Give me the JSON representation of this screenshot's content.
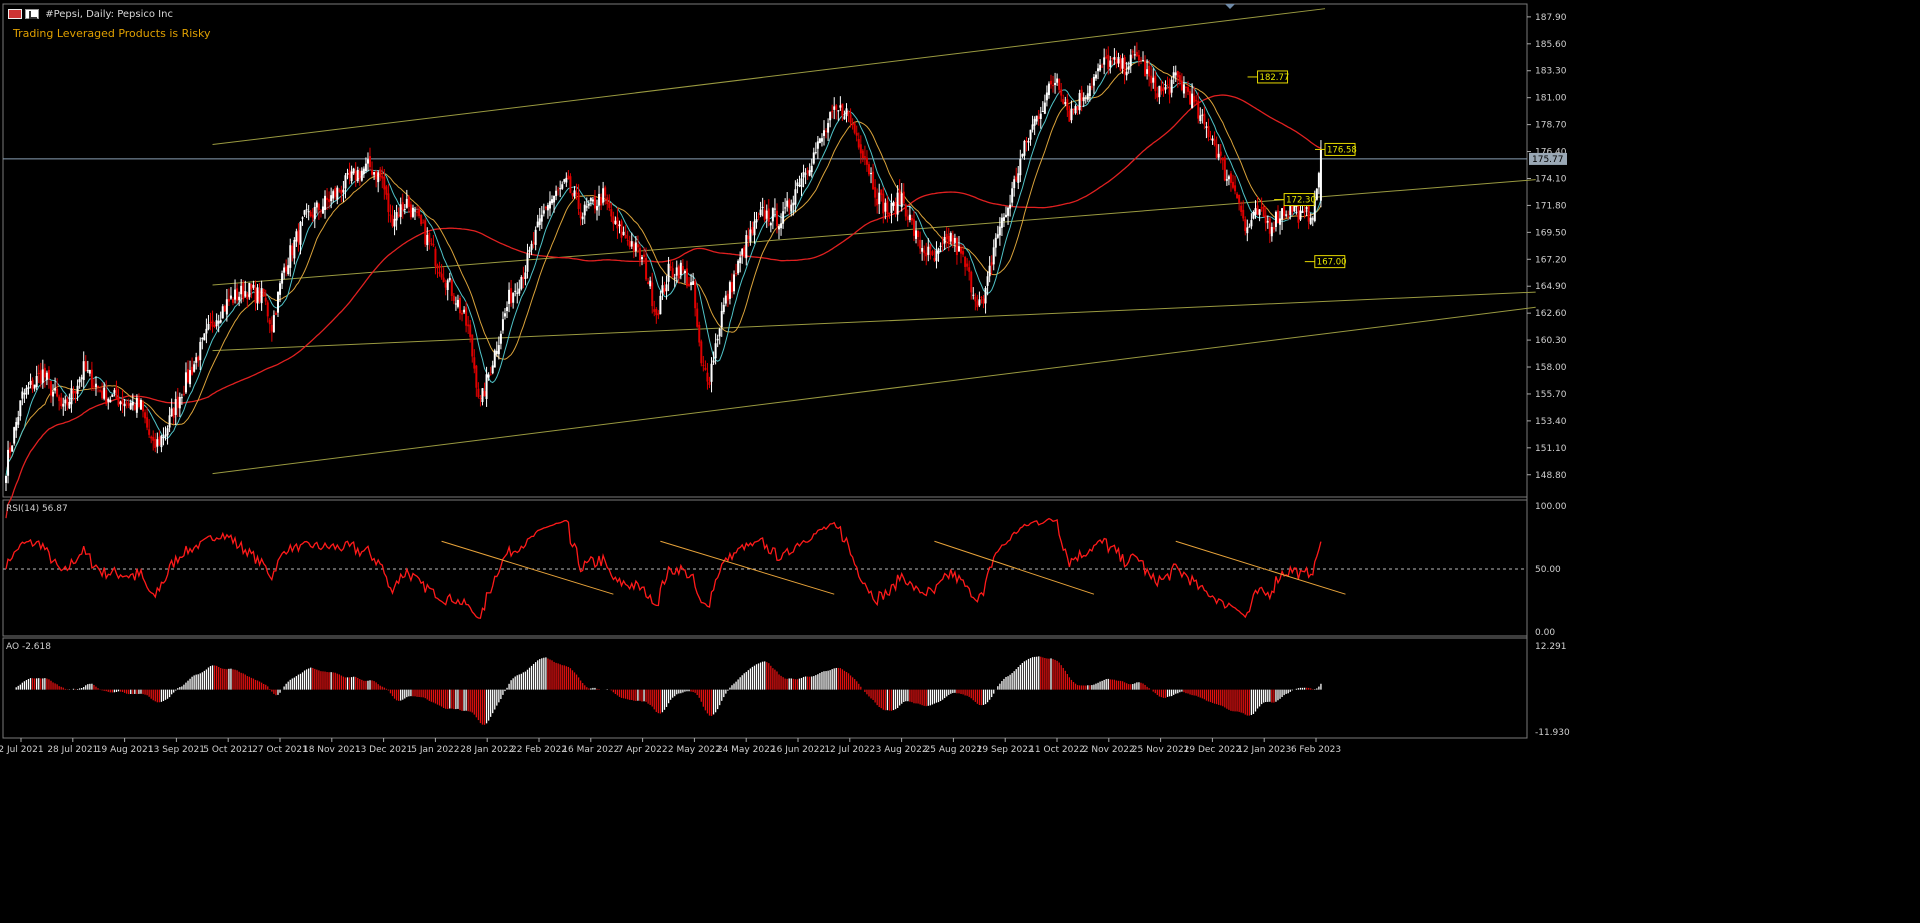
{
  "header": {
    "symbol_title": "#Pepsi, Daily:  Pepsico Inc",
    "warning": "Trading Leveraged Products is Risky"
  },
  "colors": {
    "background": "#000000",
    "bull": "#ffffff",
    "bear": "#e00000",
    "sma_fast": "#4fc3c8",
    "sma_mid": "#d9a23a",
    "sma_slow": "#e02020",
    "channel": "#9a9a40",
    "rsi_line": "#ff1a1a",
    "trend": "#e8a33a",
    "ao_up": "#ffffff",
    "ao_down": "#e01010",
    "current_price_line": "#8aa0b5"
  },
  "chart_data": [
    {
      "type": "candlestick",
      "title": "#Pepsi, Daily:  Pepsico Inc",
      "y_ticks": [
        "187.90",
        "185.60",
        "183.30",
        "181.00",
        "178.70",
        "176.40",
        "174.10",
        "171.80",
        "169.50",
        "167.20",
        "164.90",
        "162.60",
        "160.30",
        "158.00",
        "155.70",
        "153.40",
        "151.10",
        "148.80"
      ],
      "ylim": [
        146.9,
        189.0
      ],
      "current_price": "175.77",
      "callouts": [
        {
          "label": "182.77",
          "value": 182.77
        },
        {
          "label": "176.58",
          "value": 176.58
        },
        {
          "label": "172.30",
          "value": 172.3
        },
        {
          "label": "167.00",
          "value": 167.0
        }
      ],
      "x_labels": [
        "2 Jul 2021",
        "28 Jul 2021",
        "19 Aug 2021",
        "13 Sep 2021",
        "5 Oct 2021",
        "27 Oct 2021",
        "18 Nov 2021",
        "13 Dec 2021",
        "5 Jan 2022",
        "28 Jan 2022",
        "22 Feb 2022",
        "16 Mar 2022",
        "7 Apr 2022",
        "2 May 2022",
        "24 May 2022",
        "16 Jun 2022",
        "12 Jul 2022",
        "3 Aug 2022",
        "25 Aug 2022",
        "19 Sep 2022",
        "11 Oct 2022",
        "2 Nov 2022",
        "25 Nov 2022",
        "19 Dec 2022",
        "12 Jan 2023",
        "6 Feb 2023"
      ],
      "closes_anchors": [
        [
          0,
          149.5
        ],
        [
          8,
          155.5
        ],
        [
          18,
          157.5
        ],
        [
          28,
          154.2
        ],
        [
          38,
          157.8
        ],
        [
          48,
          155.6
        ],
        [
          56,
          155.2
        ],
        [
          66,
          154.6
        ],
        [
          72,
          151.0
        ],
        [
          78,
          152.5
        ],
        [
          84,
          155.2
        ],
        [
          92,
          158.3
        ],
        [
          102,
          162.2
        ],
        [
          110,
          163.8
        ],
        [
          118,
          164.6
        ],
        [
          126,
          163.9
        ],
        [
          130,
          161.5
        ],
        [
          136,
          166.5
        ],
        [
          146,
          170.6
        ],
        [
          156,
          172.0
        ],
        [
          166,
          173.6
        ],
        [
          172,
          174.6
        ],
        [
          178,
          175.1
        ],
        [
          184,
          174.0
        ],
        [
          188,
          170.6
        ],
        [
          196,
          172.1
        ],
        [
          204,
          169.6
        ],
        [
          214,
          165.9
        ],
        [
          220,
          163.9
        ],
        [
          226,
          161.2
        ],
        [
          232,
          154.8
        ],
        [
          238,
          158.6
        ],
        [
          246,
          163.8
        ],
        [
          254,
          166.5
        ],
        [
          264,
          171.8
        ],
        [
          274,
          173.6
        ],
        [
          282,
          171.1
        ],
        [
          292,
          172.6
        ],
        [
          298,
          169.9
        ],
        [
          306,
          168.6
        ],
        [
          312,
          166.8
        ],
        [
          318,
          162.6
        ],
        [
          324,
          166.1
        ],
        [
          330,
          166.4
        ],
        [
          336,
          164.6
        ],
        [
          340,
          158.0
        ],
        [
          344,
          157.2
        ],
        [
          350,
          162.6
        ],
        [
          356,
          165.6
        ],
        [
          362,
          168.6
        ],
        [
          370,
          171.1
        ],
        [
          380,
          170.6
        ],
        [
          388,
          174.1
        ],
        [
          396,
          176.4
        ],
        [
          404,
          179.4
        ],
        [
          410,
          180.1
        ],
        [
          414,
          178.6
        ],
        [
          420,
          176.1
        ],
        [
          426,
          172.6
        ],
        [
          432,
          171.1
        ],
        [
          438,
          172.6
        ],
        [
          446,
          168.6
        ],
        [
          454,
          167.1
        ],
        [
          462,
          169.1
        ],
        [
          468,
          167.1
        ],
        [
          474,
          164.1
        ],
        [
          478,
          163.2
        ],
        [
          484,
          169.1
        ],
        [
          490,
          171.6
        ],
        [
          496,
          175.6
        ],
        [
          502,
          178.6
        ],
        [
          510,
          181.6
        ],
        [
          514,
          182.8
        ],
        [
          520,
          179.6
        ],
        [
          526,
          181.1
        ],
        [
          532,
          182.6
        ],
        [
          538,
          184.1
        ],
        [
          546,
          183.6
        ],
        [
          554,
          184.6
        ],
        [
          560,
          182.1
        ],
        [
          566,
          181.4
        ],
        [
          572,
          182.6
        ],
        [
          578,
          181.6
        ],
        [
          584,
          179.1
        ],
        [
          590,
          177.6
        ],
        [
          596,
          174.6
        ],
        [
          602,
          173.1
        ],
        [
          606,
          169.6
        ],
        [
          612,
          171.1
        ],
        [
          618,
          170.1
        ],
        [
          624,
          171.3
        ],
        [
          630,
          171.6
        ],
        [
          634,
          170.6
        ],
        [
          640,
          171.6
        ],
        [
          643,
          176.58
        ]
      ],
      "sma_fast_period": 10,
      "sma_mid_period": 20,
      "sma_slow_period": 100
    },
    {
      "type": "line",
      "title": "RSI(14) 56.87",
      "name": "RSI(14)",
      "last_value": "56.87",
      "ylim": [
        0,
        100
      ],
      "y_ticks": [
        "100.00",
        "50.00",
        "0.00"
      ],
      "level": 50
    },
    {
      "type": "bar",
      "title": "AO -2.618",
      "name": "AO",
      "last_value": "-2.618",
      "y_ticks": [
        "12.291",
        "-11.930"
      ],
      "ylim": [
        -11.93,
        12.291
      ]
    }
  ]
}
